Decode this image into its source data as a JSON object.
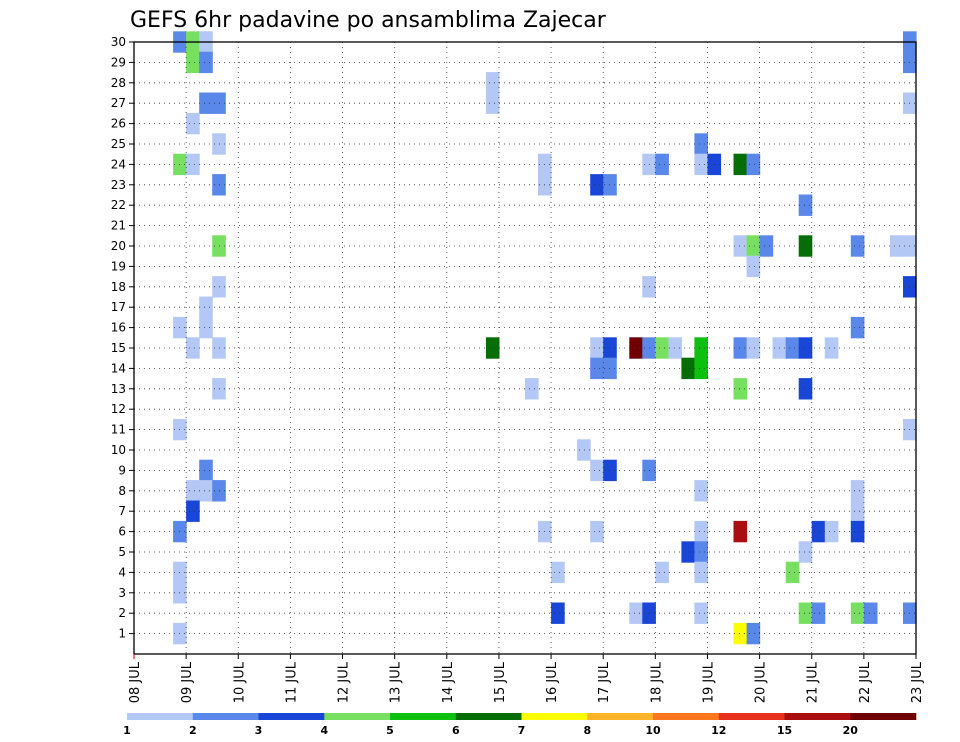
{
  "chart_data": {
    "type": "heatmap",
    "title": "GEFS 6hr padavine po ansamblima Zajecar",
    "y_ticks": [
      "1",
      "2",
      "3",
      "4",
      "5",
      "6",
      "7",
      "8",
      "9",
      "10",
      "11",
      "12",
      "13",
      "14",
      "15",
      "16",
      "17",
      "18",
      "19",
      "20",
      "21",
      "22",
      "23",
      "24",
      "25",
      "26",
      "27",
      "28",
      "29",
      "30"
    ],
    "x_ticks": [
      "08 JUL",
      "09 JUL",
      "10 JUL",
      "11 JUL",
      "12 JUL",
      "13 JUL",
      "14 JUL",
      "15 JUL",
      "16 JUL",
      "17 JUL",
      "18 JUL",
      "19 JUL",
      "20 JUL",
      "21 JUL",
      "22 JUL",
      "23 JUL"
    ],
    "grid": true,
    "colorbar": {
      "labels": [
        "1",
        "2",
        "3",
        "4",
        "5",
        "6",
        "7",
        "8",
        "10",
        "12",
        "15",
        "20"
      ],
      "colors": [
        "#b4c8f5",
        "#5a87ea",
        "#1a46d8",
        "#78e060",
        "#0ec00e",
        "#066e06",
        "#ffff00",
        "#ffb428",
        "#ff781e",
        "#e8321e",
        "#aa0e0e",
        "#6e0000"
      ]
    },
    "cells": [
      {
        "day": 8.75,
        "y": 30,
        "c": 1
      },
      {
        "day": 9.0,
        "y": 30,
        "c": 3
      },
      {
        "day": 9.25,
        "y": 30,
        "c": 0
      },
      {
        "day": 9.0,
        "y": 29,
        "c": 3
      },
      {
        "day": 9.25,
        "y": 29,
        "c": 1
      },
      {
        "day": 14.75,
        "y": 28,
        "c": 0
      },
      {
        "day": 14.75,
        "y": 27,
        "c": 0
      },
      {
        "day": 9.25,
        "y": 27,
        "c": 1
      },
      {
        "day": 9.5,
        "y": 27,
        "c": 1
      },
      {
        "day": 9.0,
        "y": 26,
        "c": 0
      },
      {
        "day": 9.5,
        "y": 25,
        "c": 0
      },
      {
        "day": 18.75,
        "y": 25,
        "c": 1
      },
      {
        "day": 8.75,
        "y": 24,
        "c": 3
      },
      {
        "day": 9.0,
        "y": 24,
        "c": 0
      },
      {
        "day": 15.75,
        "y": 24,
        "c": 0
      },
      {
        "day": 17.75,
        "y": 24,
        "c": 0
      },
      {
        "day": 18.0,
        "y": 24,
        "c": 1
      },
      {
        "day": 18.75,
        "y": 24,
        "c": 0
      },
      {
        "day": 19.0,
        "y": 24,
        "c": 2
      },
      {
        "day": 19.5,
        "y": 24,
        "c": 5
      },
      {
        "day": 19.75,
        "y": 24,
        "c": 1
      },
      {
        "day": 9.5,
        "y": 23,
        "c": 1
      },
      {
        "day": 15.75,
        "y": 23,
        "c": 0
      },
      {
        "day": 16.75,
        "y": 23,
        "c": 2
      },
      {
        "day": 17.0,
        "y": 23,
        "c": 1
      },
      {
        "day": 20.75,
        "y": 22,
        "c": 1
      },
      {
        "day": 9.5,
        "y": 20,
        "c": 3
      },
      {
        "day": 19.5,
        "y": 20,
        "c": 0
      },
      {
        "day": 19.75,
        "y": 20,
        "c": 3
      },
      {
        "day": 20.0,
        "y": 20,
        "c": 1
      },
      {
        "day": 20.75,
        "y": 20,
        "c": 5
      },
      {
        "day": 21.75,
        "y": 20,
        "c": 1
      },
      {
        "day": 22.5,
        "y": 20,
        "c": 0
      },
      {
        "day": 22.75,
        "y": 20,
        "c": 0
      },
      {
        "day": 19.75,
        "y": 19,
        "c": 0
      },
      {
        "day": 22.75,
        "y": 18,
        "c": 2
      },
      {
        "day": 9.5,
        "y": 18,
        "c": 0
      },
      {
        "day": 17.75,
        "y": 18,
        "c": 0
      },
      {
        "day": 9.25,
        "y": 17,
        "c": 0
      },
      {
        "day": 8.75,
        "y": 16,
        "c": 0
      },
      {
        "day": 9.25,
        "y": 16,
        "c": 0
      },
      {
        "day": 21.75,
        "y": 16,
        "c": 1
      },
      {
        "day": 9.0,
        "y": 15,
        "c": 0
      },
      {
        "day": 9.5,
        "y": 15,
        "c": 0
      },
      {
        "day": 14.75,
        "y": 15,
        "c": 5
      },
      {
        "day": 16.75,
        "y": 15,
        "c": 0
      },
      {
        "day": 17.0,
        "y": 15,
        "c": 2
      },
      {
        "day": 17.5,
        "y": 15,
        "c": 11
      },
      {
        "day": 17.75,
        "y": 15,
        "c": 1
      },
      {
        "day": 18.0,
        "y": 15,
        "c": 3
      },
      {
        "day": 18.25,
        "y": 15,
        "c": 0
      },
      {
        "day": 18.75,
        "y": 15,
        "c": 4
      },
      {
        "day": 19.5,
        "y": 15,
        "c": 1
      },
      {
        "day": 19.75,
        "y": 15,
        "c": 0
      },
      {
        "day": 20.25,
        "y": 15,
        "c": 0
      },
      {
        "day": 20.5,
        "y": 15,
        "c": 1
      },
      {
        "day": 20.75,
        "y": 15,
        "c": 2
      },
      {
        "day": 21.25,
        "y": 15,
        "c": 0
      },
      {
        "day": 16.75,
        "y": 14,
        "c": 1
      },
      {
        "day": 17.0,
        "y": 14,
        "c": 1
      },
      {
        "day": 18.5,
        "y": 14,
        "c": 5
      },
      {
        "day": 18.75,
        "y": 14,
        "c": 4
      },
      {
        "day": 9.5,
        "y": 13,
        "c": 0
      },
      {
        "day": 15.5,
        "y": 13,
        "c": 0
      },
      {
        "day": 19.5,
        "y": 13,
        "c": 3
      },
      {
        "day": 20.75,
        "y": 13,
        "c": 2
      },
      {
        "day": 8.75,
        "y": 11,
        "c": 0
      },
      {
        "day": 22.75,
        "y": 11,
        "c": 0
      },
      {
        "day": 16.5,
        "y": 10,
        "c": 0
      },
      {
        "day": 9.25,
        "y": 9,
        "c": 1
      },
      {
        "day": 16.75,
        "y": 9,
        "c": 0
      },
      {
        "day": 17.0,
        "y": 9,
        "c": 2
      },
      {
        "day": 17.75,
        "y": 9,
        "c": 1
      },
      {
        "day": 9.0,
        "y": 8,
        "c": 0
      },
      {
        "day": 9.25,
        "y": 8,
        "c": 0
      },
      {
        "day": 9.5,
        "y": 8,
        "c": 1
      },
      {
        "day": 18.75,
        "y": 8,
        "c": 0
      },
      {
        "day": 21.75,
        "y": 8,
        "c": 0
      },
      {
        "day": 9.0,
        "y": 7,
        "c": 2
      },
      {
        "day": 21.75,
        "y": 7,
        "c": 0
      },
      {
        "day": 8.75,
        "y": 6,
        "c": 1
      },
      {
        "day": 15.75,
        "y": 6,
        "c": 0
      },
      {
        "day": 16.75,
        "y": 6,
        "c": 0
      },
      {
        "day": 18.75,
        "y": 6,
        "c": 0
      },
      {
        "day": 19.5,
        "y": 6,
        "c": 10
      },
      {
        "day": 21.0,
        "y": 6,
        "c": 2
      },
      {
        "day": 21.25,
        "y": 6,
        "c": 0
      },
      {
        "day": 21.75,
        "y": 6,
        "c": 2
      },
      {
        "day": 18.5,
        "y": 5,
        "c": 2
      },
      {
        "day": 18.75,
        "y": 5,
        "c": 1
      },
      {
        "day": 20.75,
        "y": 5,
        "c": 0
      },
      {
        "day": 8.75,
        "y": 4,
        "c": 0
      },
      {
        "day": 16.0,
        "y": 4,
        "c": 0
      },
      {
        "day": 18.0,
        "y": 4,
        "c": 0
      },
      {
        "day": 18.75,
        "y": 4,
        "c": 0
      },
      {
        "day": 20.5,
        "y": 4,
        "c": 3
      },
      {
        "day": 8.75,
        "y": 3,
        "c": 0
      },
      {
        "day": 16.0,
        "y": 2,
        "c": 2
      },
      {
        "day": 17.5,
        "y": 2,
        "c": 0
      },
      {
        "day": 17.75,
        "y": 2,
        "c": 2
      },
      {
        "day": 18.75,
        "y": 2,
        "c": 0
      },
      {
        "day": 20.75,
        "y": 2,
        "c": 3
      },
      {
        "day": 21.0,
        "y": 2,
        "c": 1
      },
      {
        "day": 21.75,
        "y": 2,
        "c": 3
      },
      {
        "day": 22.0,
        "y": 2,
        "c": 1
      },
      {
        "day": 22.75,
        "y": 2,
        "c": 1
      },
      {
        "day": 8.75,
        "y": 1,
        "c": 0
      },
      {
        "day": 19.5,
        "y": 1,
        "c": 6
      },
      {
        "day": 19.75,
        "y": 1,
        "c": 1
      },
      {
        "day": 22.75,
        "y": 30,
        "c": 1
      },
      {
        "day": 22.75,
        "y": 29,
        "c": 1
      },
      {
        "day": 22.75,
        "y": 27,
        "c": 0
      }
    ]
  }
}
